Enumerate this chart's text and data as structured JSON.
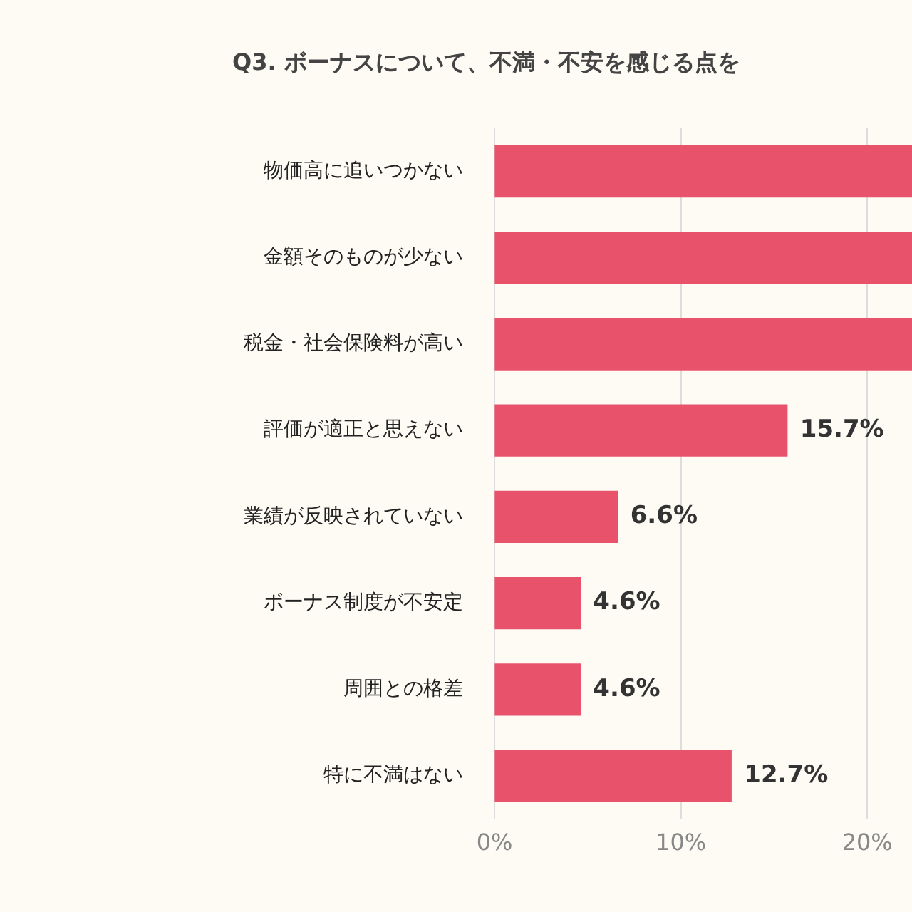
{
  "chart_data": {
    "type": "bar",
    "orientation": "horizontal",
    "title": "Q3. ボーナスについて、不満・不安を感じる点を",
    "categories": [
      "物価高に追いつかない",
      "金額そのものが少ない",
      "税金・社会保険料が高い",
      "評価が適正と思えない",
      "業績が反映されていない",
      "ボーナス制度が不安定",
      "周囲との格差",
      "特に不満はない"
    ],
    "values": [
      22.4,
      22.4,
      22.4,
      15.7,
      6.6,
      4.6,
      4.6,
      12.7
    ],
    "value_labels": [
      null,
      null,
      null,
      "15.7%",
      "6.6%",
      "4.6%",
      "4.6%",
      "12.7%"
    ],
    "color": "#e8536b",
    "xlim": [
      0,
      22.4
    ],
    "xticks": [
      {
        "value": 0,
        "label": "0%"
      },
      {
        "value": 10,
        "label": "10%"
      },
      {
        "value": 20,
        "label": "20%"
      }
    ],
    "grid": "x"
  }
}
